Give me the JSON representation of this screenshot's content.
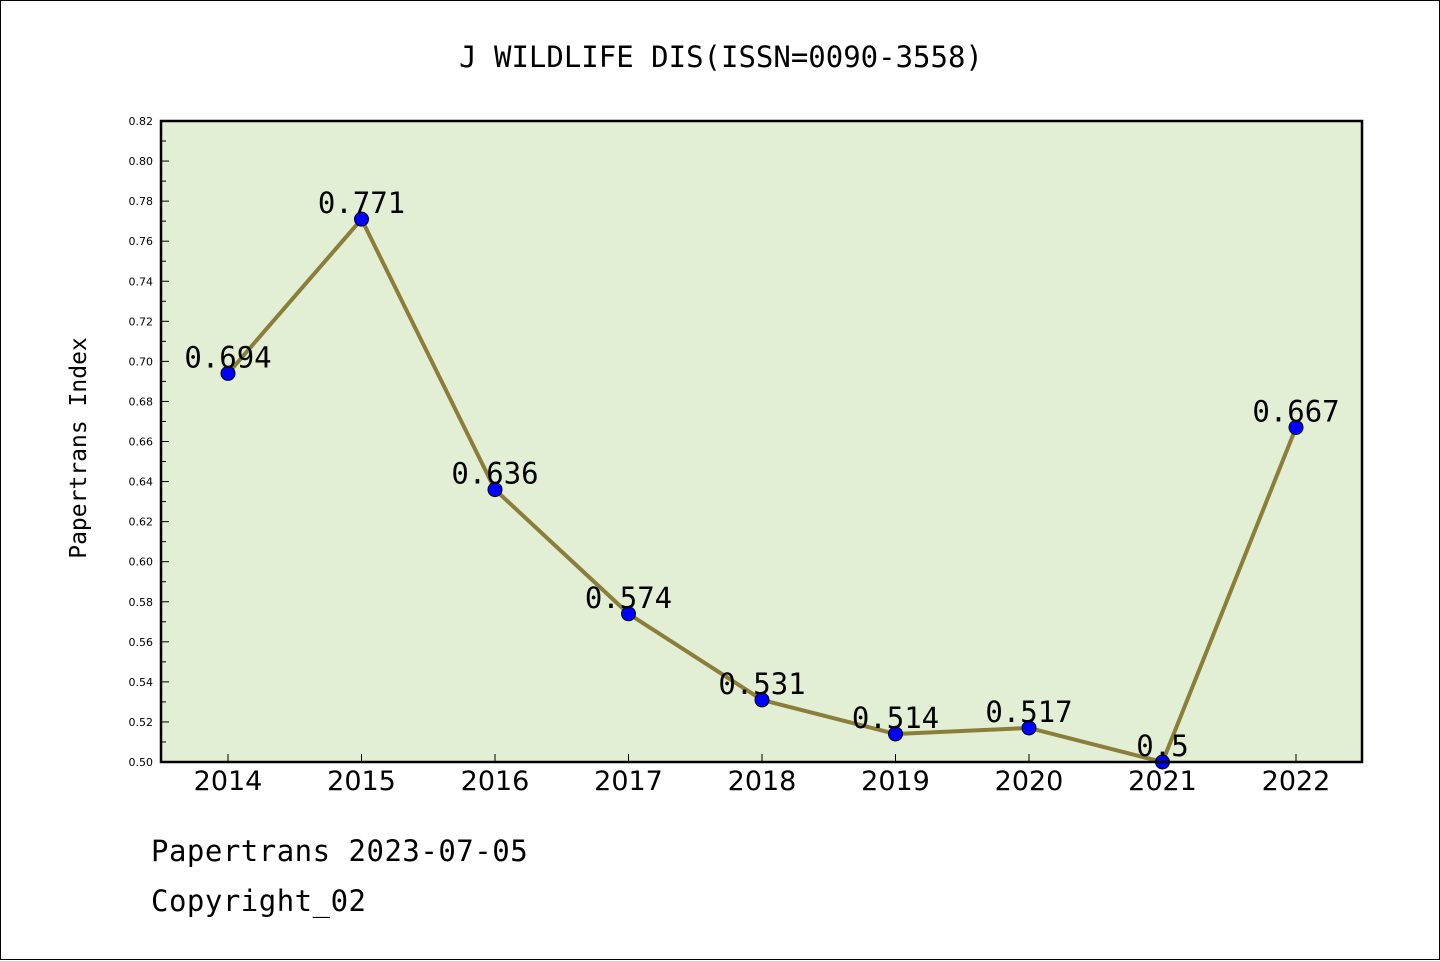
{
  "chart_data": {
    "type": "line",
    "title": "J WILDLIFE DIS(ISSN=0090-3558)",
    "ylabel": "Papertrans Index",
    "xlabel": "",
    "categories": [
      "2014",
      "2015",
      "2016",
      "2017",
      "2018",
      "2019",
      "2020",
      "2021",
      "2022"
    ],
    "values": [
      0.694,
      0.771,
      0.636,
      0.574,
      0.531,
      0.514,
      0.517,
      0.5,
      0.667
    ],
    "data_labels": [
      "0.694",
      "0.771",
      "0.636",
      "0.574",
      "0.531",
      "0.514",
      "0.517",
      "0.5",
      "0.667"
    ],
    "ylim": [
      0.5,
      0.82
    ],
    "yticks": [
      "0.50",
      "0.52",
      "0.54",
      "0.56",
      "0.58",
      "0.60",
      "0.62",
      "0.64",
      "0.66",
      "0.68",
      "0.70",
      "0.72",
      "0.74",
      "0.76",
      "0.78",
      "0.80",
      "0.82"
    ],
    "grid": false,
    "colors": {
      "plot_background": "#e2efd4",
      "line": "#8b7d3a",
      "marker": "#0000ff"
    }
  },
  "footer": {
    "line1": "Papertrans 2023-07-05",
    "line2": "Copyright_02"
  }
}
